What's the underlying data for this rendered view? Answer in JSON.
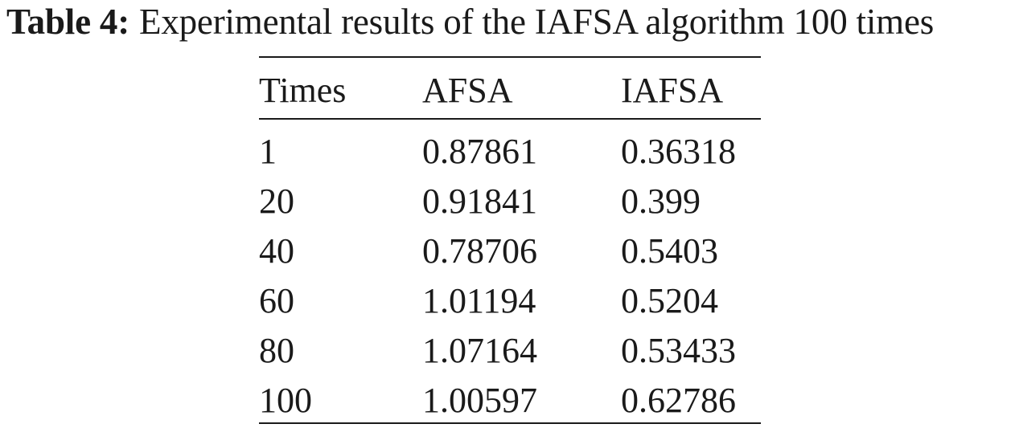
{
  "caption": {
    "label": "Table 4:",
    "text": "Experimental results of the IAFSA algorithm 100 times"
  },
  "table": {
    "columns": [
      "Times",
      "AFSA",
      "IAFSA"
    ],
    "rows": [
      [
        "1",
        "0.87861",
        "0.36318"
      ],
      [
        "20",
        "0.91841",
        "0.399"
      ],
      [
        "40",
        "0.78706",
        "0.5403"
      ],
      [
        "60",
        "1.01194",
        "0.5204"
      ],
      [
        "80",
        "1.07164",
        "0.53433"
      ],
      [
        "100",
        "1.00597",
        "0.62786"
      ]
    ]
  }
}
